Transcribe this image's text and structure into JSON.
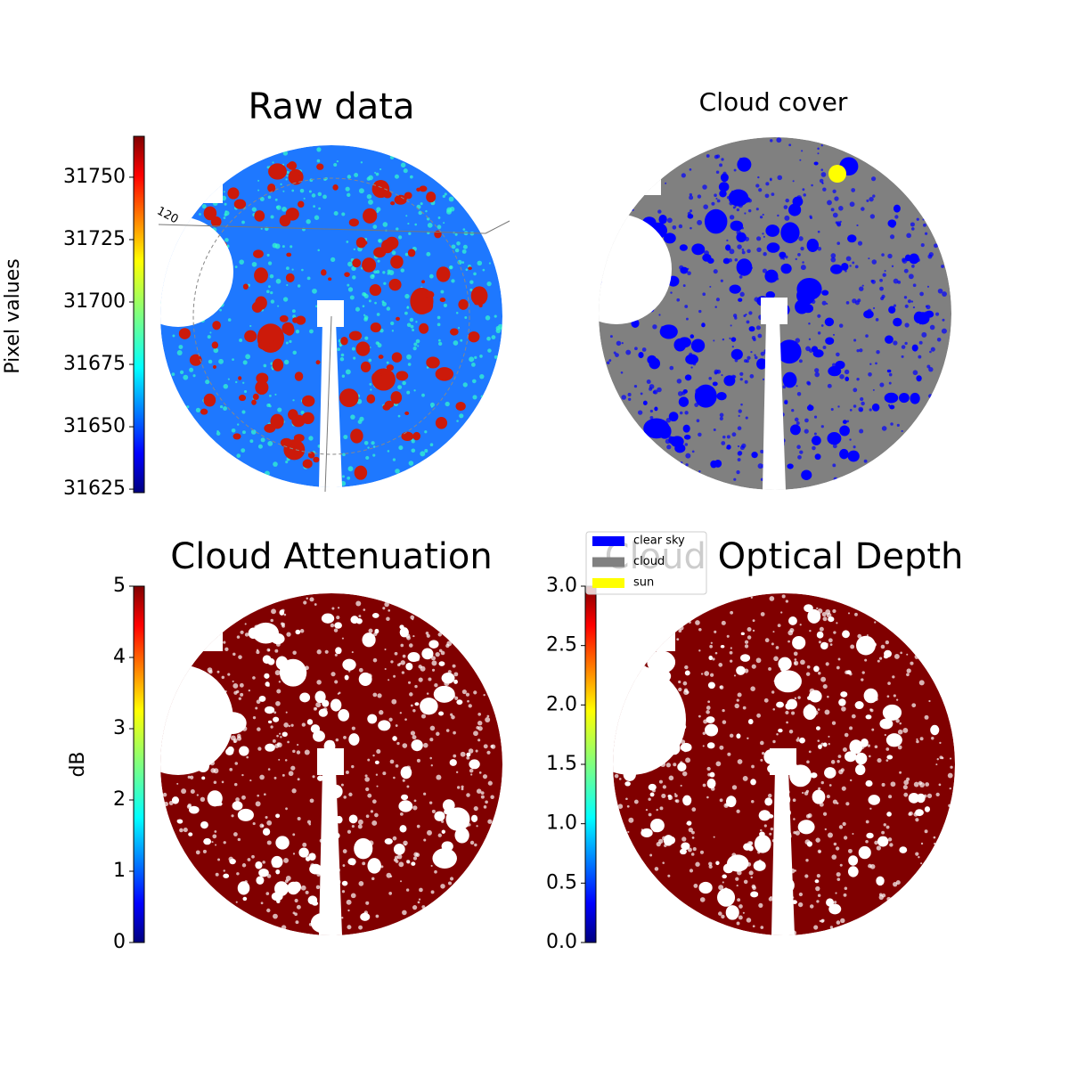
{
  "panels": [
    {
      "title": "Raw data",
      "colorbar": {
        "label": "Pixel values",
        "lim": [
          31623.6,
          31766.4
        ],
        "ticks": [
          31625,
          31650,
          31675,
          31700,
          31725,
          31750
        ],
        "colormap": "jet"
      },
      "grid_labels": [
        "120"
      ]
    },
    {
      "title": "Cloud cover",
      "legend": {
        "entries": [
          {
            "name": "clear sky",
            "color": "#0000ff"
          },
          {
            "name": "cloud",
            "color": "#808080"
          },
          {
            "name": "sun",
            "color": "#ffff00"
          }
        ]
      }
    },
    {
      "title": "Cloud Attenuation",
      "colorbar": {
        "label": "dB",
        "lim": [
          0,
          5
        ],
        "ticks": [
          0,
          1,
          2,
          3,
          4,
          5
        ],
        "colormap": "jet"
      }
    },
    {
      "title": "Cloud Optical Depth",
      "colorbar": {
        "lim": [
          0,
          3
        ],
        "ticks": [
          {
            "value": 0,
            "label": "0.0"
          },
          {
            "value": 0.5,
            "label": "0.5"
          },
          {
            "value": 1,
            "label": "1.0"
          },
          {
            "value": 1.5,
            "label": "1.5"
          },
          {
            "value": 2,
            "label": "2.0"
          },
          {
            "value": 2.5,
            "label": "2.5"
          },
          {
            "value": 3,
            "label": "3.0"
          }
        ],
        "colormap": "jet"
      }
    }
  ]
}
